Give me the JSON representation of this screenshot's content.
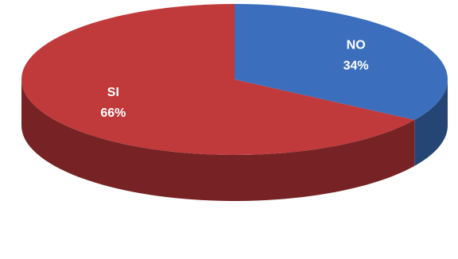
{
  "chart_data": {
    "type": "pie",
    "categories": [
      "NO",
      "SI"
    ],
    "values": [
      34,
      66
    ],
    "value_labels": [
      "34%",
      "66%"
    ],
    "colors": [
      "#3b6fbd",
      "#c0393b"
    ]
  }
}
